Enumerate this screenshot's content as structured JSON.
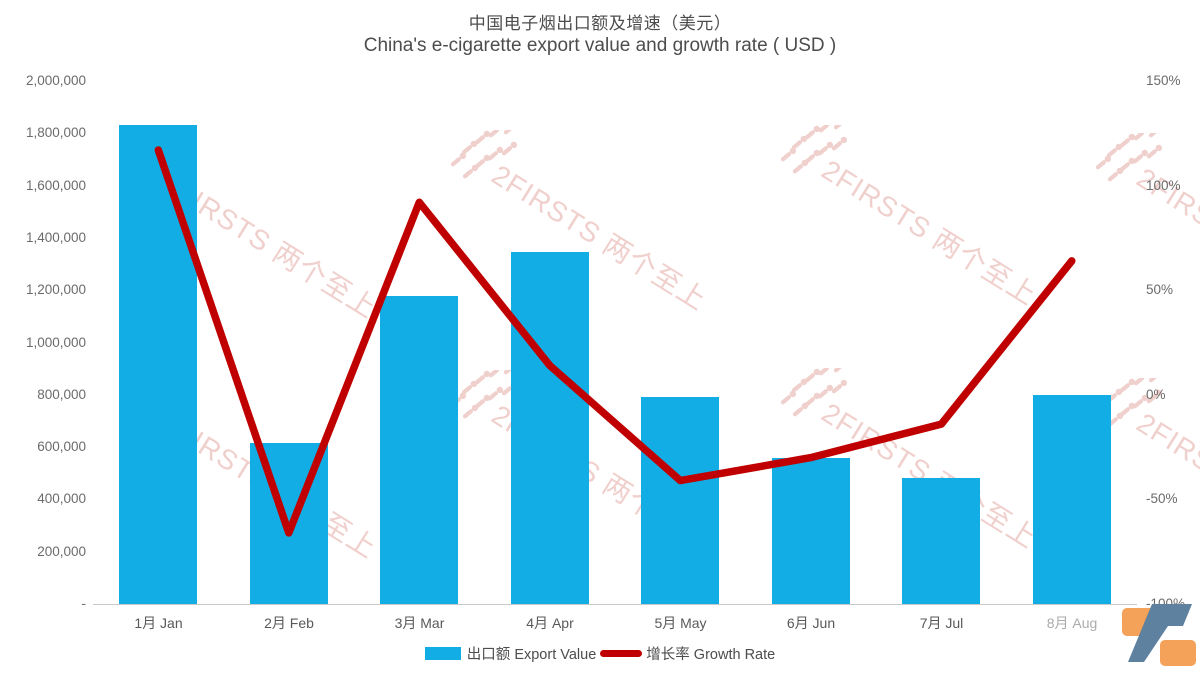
{
  "chart_data": {
    "type": "bar",
    "title": "中国电子烟出口额及增速（美元）",
    "subtitle": "China's e-cigarette export value and growth rate ( USD )",
    "categories": [
      "1月 Jan",
      "2月 Feb",
      "3月 Mar",
      "4月 Apr",
      "5月 May",
      "6月 Jun",
      "7月 Jul",
      "8月 Aug"
    ],
    "series": [
      {
        "name": "出口额 Export Value",
        "type": "bar",
        "axis": "left",
        "values": [
          1830000,
          615000,
          1176000,
          1345000,
          790000,
          557000,
          482000,
          800000
        ]
      },
      {
        "name": "增长率 Growth Rate",
        "type": "line",
        "axis": "right",
        "values_pct": [
          117,
          -66,
          92,
          14,
          -41,
          -30,
          -14,
          64
        ]
      }
    ],
    "left_axis": {
      "min": 0,
      "max": 2000000,
      "tick_labels": [
        "2,000,000",
        "1,800,000",
        "1,600,000",
        "1,400,000",
        "1,200,000",
        "1,000,000",
        "800,000",
        "600,000",
        "400,000",
        "200,000",
        "-"
      ]
    },
    "right_axis": {
      "min": -100,
      "max": 150,
      "tick_labels": [
        "150%",
        "100%",
        "50%",
        "0%",
        "-50%",
        "-100%"
      ]
    },
    "grid": false,
    "legend_position": "bottom"
  },
  "watermark": {
    "text": "2FIRSTS 两个至上"
  },
  "colors": {
    "bar": "#12ade4",
    "line": "#c00000",
    "watermark": "#f0d0cd",
    "logo_orange": "#f4a259",
    "logo_blue": "#5e81a0"
  }
}
